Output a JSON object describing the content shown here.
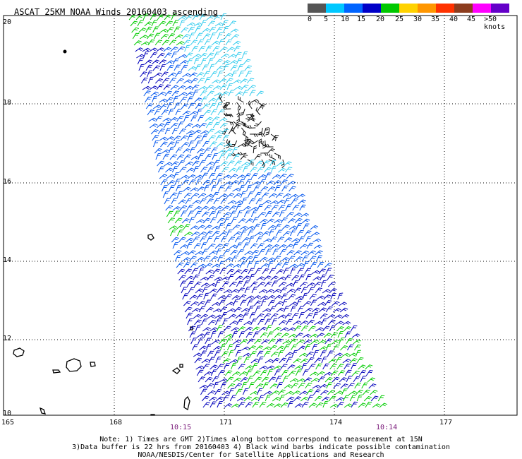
{
  "title": "ASCAT 25KM NOAA Winds 20160403 ascending",
  "legend": {
    "labels": [
      "0",
      "5",
      "10",
      "15",
      "20",
      "25",
      "30",
      "35",
      "40",
      "45",
      ">50 knots"
    ],
    "colors": [
      "#555555",
      "#00c8ff",
      "#0064ff",
      "#0000c8",
      "#00c800",
      "#ffd200",
      "#ff9600",
      "#ff3200",
      "#8c3c1e",
      "#ff00ff",
      "#6400c8"
    ]
  },
  "axes": {
    "lat_labels": [
      "20",
      "18",
      "16",
      "14",
      "12",
      "10"
    ],
    "lon_labels": [
      "165",
      "168",
      "171",
      "174",
      "177"
    ],
    "times": [
      "10:15",
      "10:14"
    ]
  },
  "notes": {
    "line1": "Note: 1) Times are GMT 2)Times along bottom correspond to measurement at 15N",
    "line2": "3)Data buffer is 22 hrs from 20160403 4) Black wind barbs indicate possible contamination",
    "line3": "NOAA/NESDIS/Center for Satellite Applications and Research"
  },
  "barb_colors": {
    "light": "#33ccee",
    "medium": "#0055ee",
    "dark": "#0000bb",
    "green": "#00cc00",
    "contaminated": "#111111"
  }
}
